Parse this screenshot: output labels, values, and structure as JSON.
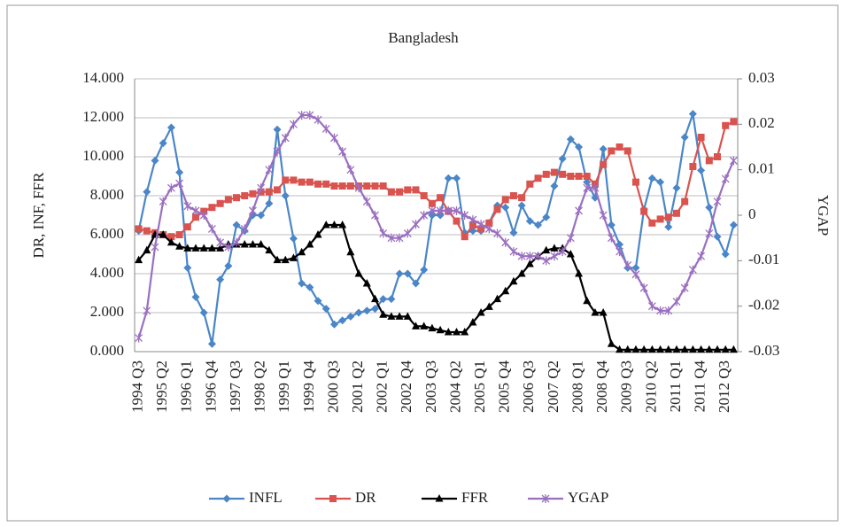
{
  "chart_data": {
    "type": "line",
    "title": "Bangladesh",
    "y_label": "DR, INF, FFR",
    "y2_label": "YGAP",
    "categories": [
      "1994 Q3",
      null,
      null,
      "1995 Q2",
      null,
      null,
      "1996 Q1",
      null,
      null,
      "1996 Q4",
      null,
      null,
      "1997 Q3",
      null,
      null,
      "1998 Q2",
      null,
      null,
      "1999 Q1",
      null,
      null,
      "1999 Q4",
      null,
      null,
      "2000 Q3",
      null,
      null,
      "2001 Q2",
      null,
      null,
      "2002 Q1",
      null,
      null,
      "2002 Q4",
      null,
      null,
      "2003 Q3",
      null,
      null,
      "2004 Q2",
      null,
      null,
      "2005 Q1",
      null,
      null,
      "2005 Q4",
      null,
      null,
      "2006 Q3",
      null,
      null,
      "2007 Q2",
      null,
      null,
      "2008 Q1",
      null,
      null,
      "2008 Q4",
      null,
      null,
      "2009 Q3",
      null,
      null,
      "2010 Q2",
      null,
      null,
      "2011 Q1",
      null,
      null,
      "2011 Q4",
      null,
      null,
      "2012 Q3",
      null
    ],
    "ylim": [
      0,
      14
    ],
    "yticks": [
      {
        "value": 0,
        "label": "0.000"
      },
      {
        "value": 2,
        "label": "2.000"
      },
      {
        "value": 4,
        "label": "4.000"
      },
      {
        "value": 6,
        "label": "6.000"
      },
      {
        "value": 8,
        "label": "8.000"
      },
      {
        "value": 10,
        "label": "10.000"
      },
      {
        "value": 12,
        "label": "12.000"
      },
      {
        "value": 14,
        "label": "14.000"
      }
    ],
    "y2lim": [
      -0.03,
      0.03
    ],
    "y2ticks": [
      -0.03,
      -0.02,
      -0.01,
      0,
      0.01,
      0.02,
      0.03
    ],
    "grid": true,
    "legend": "bottom",
    "series": [
      {
        "name": "INFL",
        "color": "#4a86c8",
        "marker": "diamond",
        "values": [
          6.2,
          8.2,
          9.8,
          10.7,
          11.5,
          9.2,
          4.3,
          2.8,
          2.0,
          0.4,
          3.7,
          4.4,
          6.5,
          6.2,
          7.0,
          7.0,
          7.6,
          11.4,
          8.0,
          5.8,
          3.5,
          3.3,
          2.6,
          2.2,
          1.4,
          1.6,
          1.8,
          2.0,
          2.1,
          2.2,
          2.7,
          2.7,
          4.0,
          4.0,
          3.5,
          4.2,
          7.0,
          7.0,
          8.9,
          8.9,
          6.1,
          6.2,
          6.2,
          6.6,
          7.5,
          7.4,
          6.1,
          7.5,
          6.7,
          6.5,
          6.9,
          8.5,
          9.9,
          10.9,
          10.5,
          8.7,
          7.9,
          10.4,
          6.5,
          5.5,
          4.3,
          4.3,
          7.3,
          8.9,
          8.7,
          6.4,
          8.4,
          11.0,
          12.2,
          9.3,
          7.4,
          5.9,
          5.0,
          6.5
        ]
      },
      {
        "name": "DR",
        "color": "#d9534f",
        "marker": "square",
        "values": [
          6.3,
          6.2,
          6.1,
          6.0,
          5.9,
          6.0,
          6.4,
          6.9,
          7.2,
          7.4,
          7.6,
          7.8,
          7.9,
          8.0,
          8.1,
          8.2,
          8.2,
          8.3,
          8.8,
          8.8,
          8.7,
          8.7,
          8.6,
          8.6,
          8.5,
          8.5,
          8.5,
          8.5,
          8.5,
          8.5,
          8.5,
          8.2,
          8.2,
          8.3,
          8.3,
          8.0,
          7.6,
          7.9,
          7.2,
          6.7,
          5.9,
          6.5,
          6.3,
          6.6,
          7.3,
          7.8,
          8.0,
          7.9,
          8.6,
          8.9,
          9.1,
          9.2,
          9.1,
          9.0,
          9.0,
          9.0,
          8.6,
          9.6,
          10.3,
          10.5,
          10.3,
          8.7,
          7.2,
          6.6,
          6.8,
          6.9,
          7.1,
          7.7,
          9.5,
          11.0,
          9.8,
          10.0,
          11.6,
          11.8
        ]
      },
      {
        "name": "FFR",
        "color": "#000000",
        "marker": "triangle",
        "values": [
          4.7,
          5.2,
          6.0,
          6.0,
          5.6,
          5.4,
          5.3,
          5.3,
          5.3,
          5.3,
          5.3,
          5.5,
          5.5,
          5.5,
          5.5,
          5.5,
          5.2,
          4.7,
          4.7,
          4.8,
          5.1,
          5.5,
          6.0,
          6.5,
          6.5,
          6.5,
          5.1,
          4.0,
          3.5,
          2.7,
          1.9,
          1.8,
          1.8,
          1.8,
          1.3,
          1.3,
          1.2,
          1.1,
          1.0,
          1.0,
          1.0,
          1.5,
          2.0,
          2.3,
          2.7,
          3.1,
          3.6,
          4.0,
          4.5,
          4.9,
          5.2,
          5.3,
          5.3,
          5.0,
          4.0,
          2.6,
          2.0,
          2.0,
          0.4,
          0.1,
          0.1,
          0.1,
          0.1,
          0.1,
          0.1,
          0.1,
          0.1,
          0.1,
          0.1,
          0.1,
          0.1,
          0.1,
          0.1,
          0.1
        ]
      },
      {
        "name": "YGAP",
        "color": "#9a6fc0",
        "marker": "star",
        "axis": "y2",
        "values": [
          -0.027,
          -0.021,
          -0.007,
          0.003,
          0.006,
          0.007,
          0.002,
          0.001,
          0.0,
          -0.003,
          -0.006,
          -0.007,
          -0.006,
          -0.003,
          0.001,
          0.006,
          0.01,
          0.014,
          0.017,
          0.02,
          0.022,
          0.022,
          0.021,
          0.019,
          0.017,
          0.014,
          0.01,
          0.006,
          0.003,
          0.0,
          -0.004,
          -0.005,
          -0.005,
          -0.004,
          -0.002,
          0.0,
          0.001,
          0.001,
          0.001,
          0.001,
          0.0,
          -0.001,
          -0.002,
          -0.003,
          -0.004,
          -0.006,
          -0.008,
          -0.009,
          -0.009,
          -0.009,
          -0.01,
          -0.009,
          -0.008,
          -0.005,
          0.001,
          0.006,
          0.006,
          0.0,
          -0.005,
          -0.008,
          -0.011,
          -0.013,
          -0.016,
          -0.02,
          -0.021,
          -0.021,
          -0.019,
          -0.016,
          -0.012,
          -0.009,
          -0.004,
          0.003,
          0.008,
          0.012
        ]
      }
    ]
  }
}
